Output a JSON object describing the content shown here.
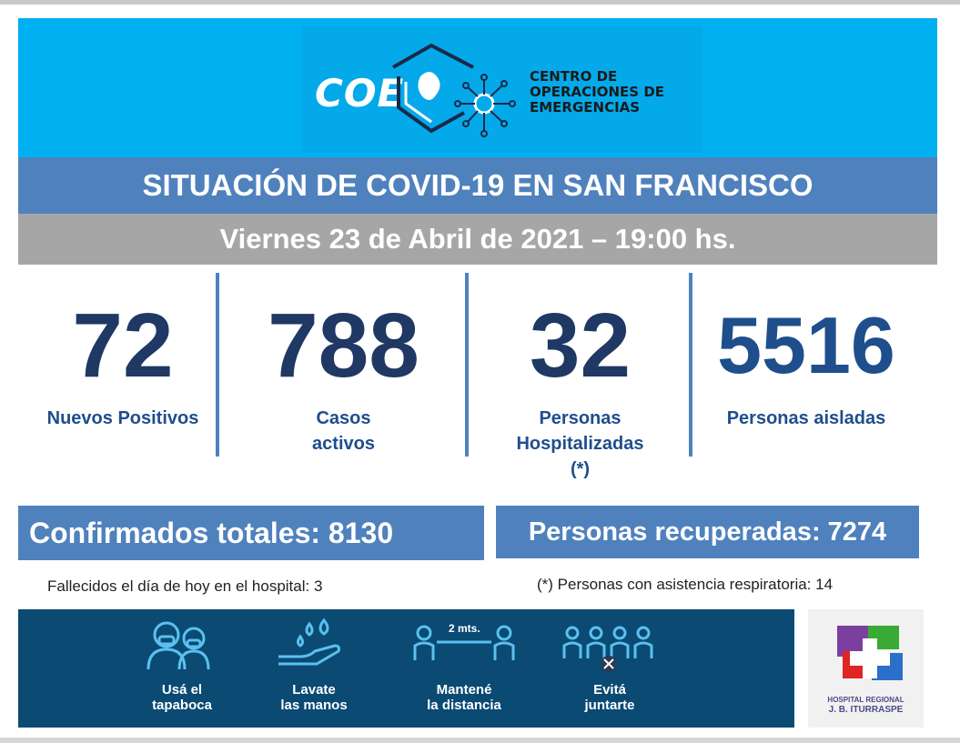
{
  "logo": {
    "acronym": "COE",
    "org_lines": [
      "CENTRO DE",
      "OPERACIONES DE",
      "EMERGENCIAS"
    ]
  },
  "title": "SITUACIÓN DE COVID-19 EN SAN FRANCISCO",
  "date": "Viernes 23 de Abril de 2021 – 19:00 hs.",
  "stats": [
    {
      "value": "72",
      "label_lines": [
        "Nuevos Positivos"
      ]
    },
    {
      "value": "788",
      "label_lines": [
        "Casos",
        "activos"
      ]
    },
    {
      "value": "32",
      "label_lines": [
        "Personas",
        "Hospitalizadas",
        "(*)"
      ]
    },
    {
      "value": "5516",
      "label_lines": [
        "Personas aisladas"
      ]
    }
  ],
  "totals": {
    "confirmados": "Confirmados totales: 8130",
    "recuperados": "Personas recuperadas: 7274"
  },
  "notes": {
    "fallecidos": "Fallecidos el día de hoy en el hospital:  3",
    "asistencia": "(*) Personas con asistencia respiratoria: 14"
  },
  "banner": {
    "items": [
      {
        "icon": "mask-people-icon",
        "lines": [
          "Usá el",
          "tapaboca"
        ]
      },
      {
        "icon": "wash-hands-icon",
        "lines": [
          "Lavate",
          "las manos"
        ]
      },
      {
        "icon": "distance-icon",
        "lines": [
          "Mantené",
          "la distancia"
        ],
        "tag": "2 mts."
      },
      {
        "icon": "no-crowd-icon",
        "lines": [
          "Evitá",
          "juntarte"
        ]
      }
    ]
  },
  "hospital": {
    "line1": "HOSPITAL REGIONAL",
    "line2": "J. B. ITURRASPE"
  },
  "colors": {
    "header": "#00b0f0",
    "title_bar": "#4f81bd",
    "date_bar": "#a6a6a6",
    "numbers": "#1f3864",
    "banner": "#0a4a73"
  }
}
